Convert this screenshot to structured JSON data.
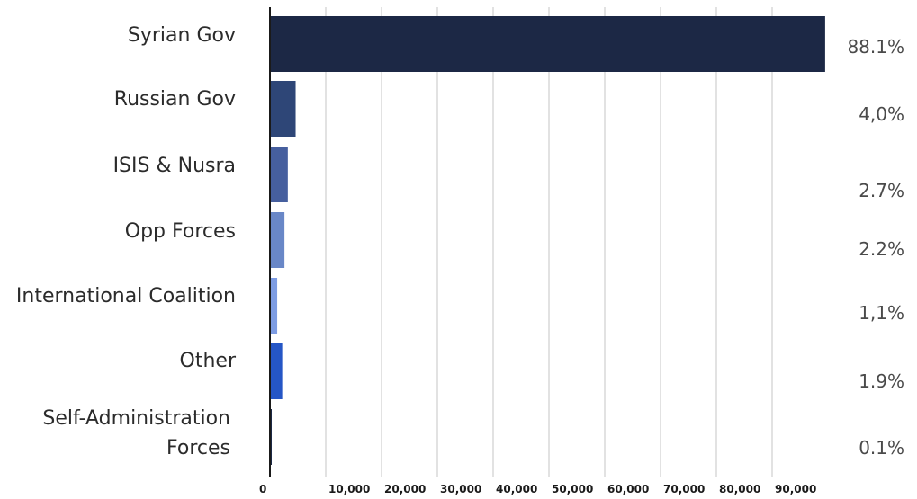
{
  "chart_data": {
    "type": "bar",
    "orientation": "horizontal",
    "title": "",
    "xlabel": "",
    "ylabel": "",
    "categories": [
      "Syrian Gov",
      "Russian Gov",
      "ISIS & Nusra",
      "Opp Forces",
      "International Coalition",
      "Other",
      "Self-Administration Forces"
    ],
    "values": [
      99500,
      4600,
      3200,
      2600,
      1300,
      2200,
      150
    ],
    "percent_labels": [
      "88.1%",
      "4,0%",
      "2.7%",
      "2.2%",
      "1,1%",
      "1.9%",
      "0.1%"
    ],
    "bar_colors": [
      "#1c2845",
      "#2e4677",
      "#465f9e",
      "#6987c7",
      "#7d9ce3",
      "#2556c6",
      "#1c2845"
    ],
    "xlim": [
      0,
      100000
    ],
    "x_ticks": [
      0,
      10000,
      20000,
      30000,
      40000,
      50000,
      60000,
      70000,
      80000,
      90000
    ],
    "x_tick_labels": [
      "0",
      "10,000",
      "20,000",
      "30,000",
      "40,000",
      "50,000",
      "60,000",
      "70,000",
      "80,000",
      "90,000"
    ],
    "grid": true,
    "legend": "none"
  }
}
